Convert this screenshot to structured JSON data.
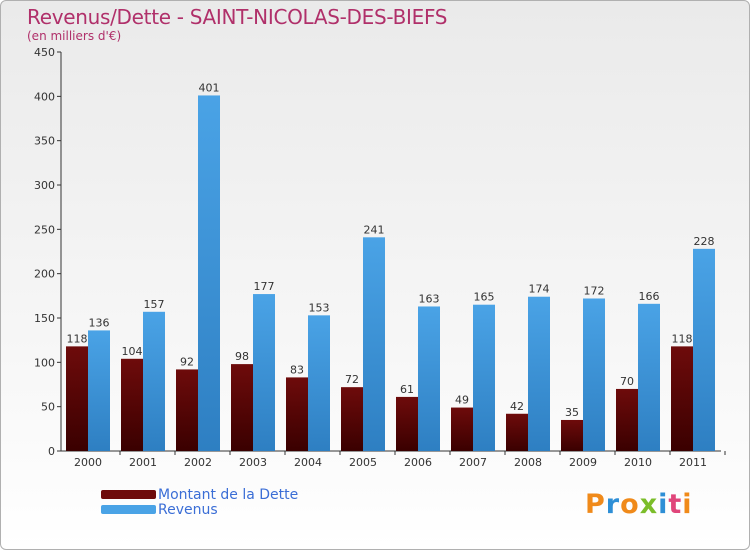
{
  "chart_data": {
    "type": "bar",
    "title": "Revenus/Dette - SAINT-NICOLAS-DES-BIEFS",
    "subtitle": "(en milliers d'€)",
    "categories": [
      "2000",
      "2001",
      "2002",
      "2003",
      "2004",
      "2005",
      "2006",
      "2007",
      "2008",
      "2009",
      "2010",
      "2011"
    ],
    "series": [
      {
        "name": "Montant de la Dette",
        "color": "#6e0b0b",
        "values": [
          118,
          104,
          92,
          98,
          83,
          72,
          61,
          49,
          42,
          35,
          70,
          118
        ]
      },
      {
        "name": "Revenus",
        "color": "#4aa3e6",
        "values": [
          136,
          157,
          401,
          177,
          153,
          241,
          163,
          165,
          174,
          172,
          166,
          228
        ]
      }
    ],
    "yticks": [
      0,
      50,
      100,
      150,
      200,
      250,
      300,
      350,
      400,
      450
    ],
    "ylim": [
      0,
      450
    ],
    "grid": false,
    "legend_position": "bottom-left"
  },
  "logo": {
    "letters": [
      "P",
      "r",
      "o",
      "x",
      "i",
      "t",
      "i"
    ],
    "colors": [
      "#f08a1a",
      "#2e8fd6",
      "#f08a1a",
      "#7bbd2a",
      "#2e8fd6",
      "#e0457a",
      "#f08a1a"
    ]
  }
}
